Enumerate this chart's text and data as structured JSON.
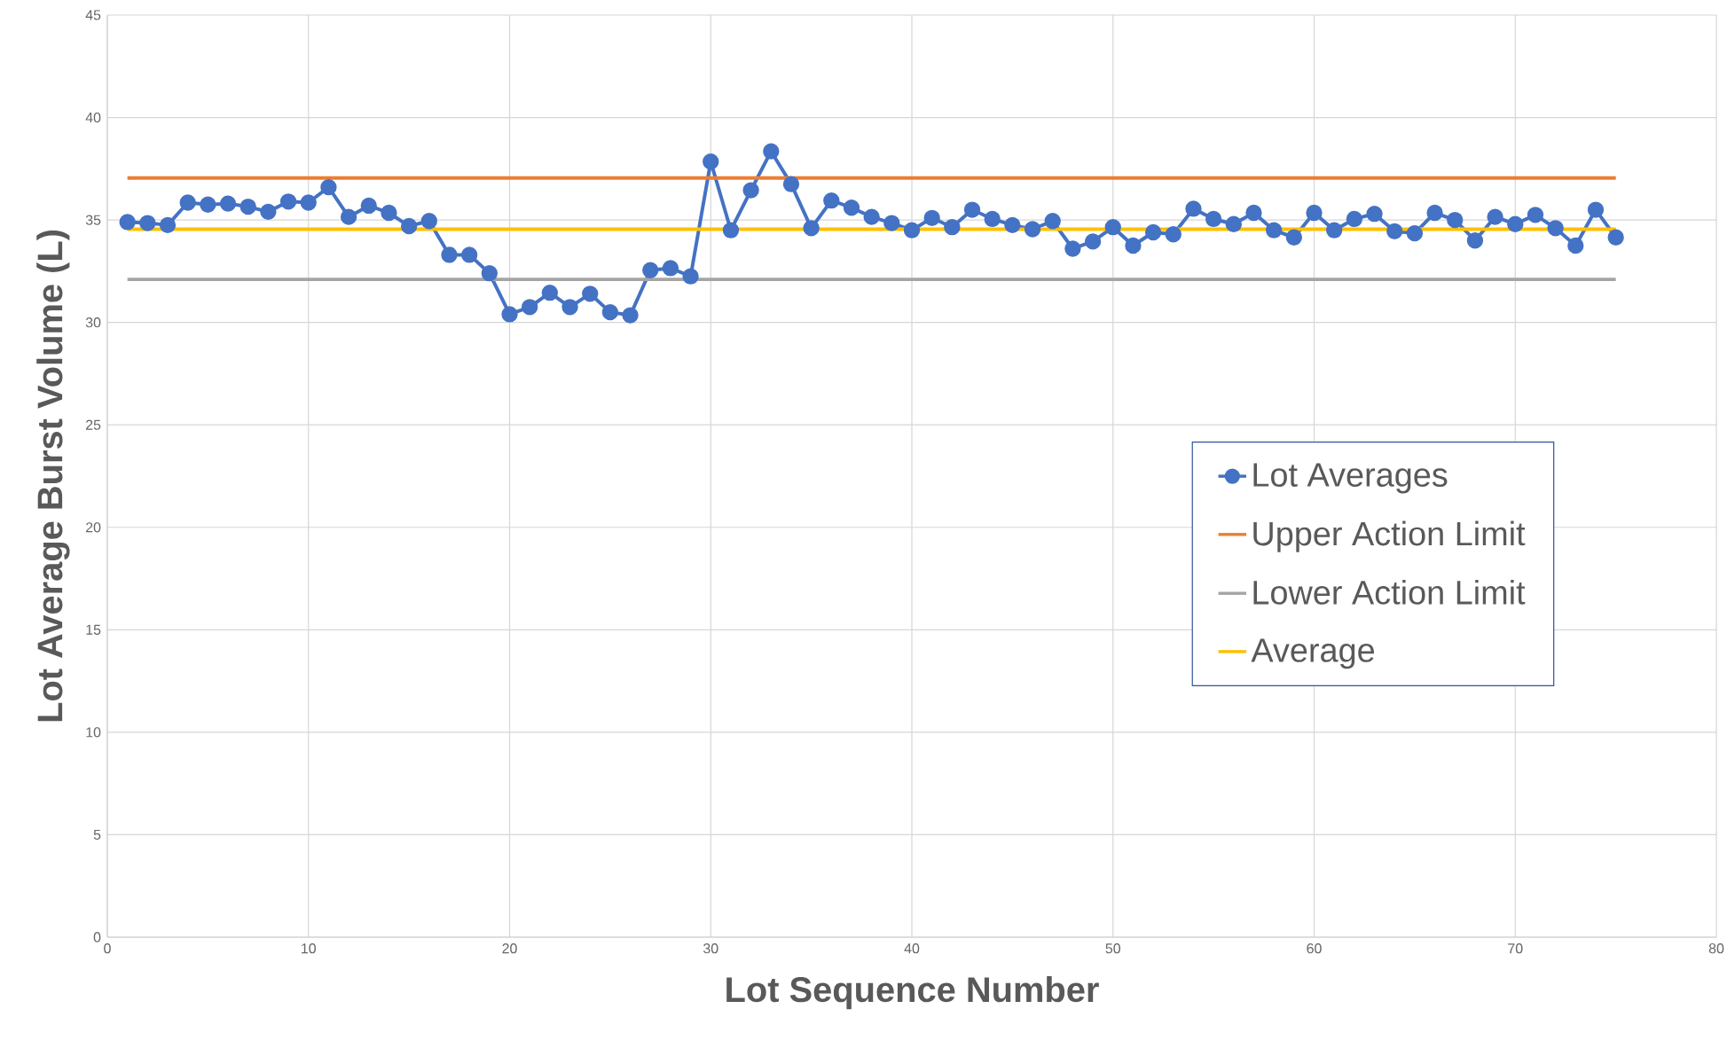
{
  "chart_data": {
    "type": "line",
    "xlabel": "Lot Sequence Number",
    "ylabel": "Lot Average Burst Volume (L)",
    "xlim": [
      0,
      80
    ],
    "xticks": [
      0,
      10,
      20,
      30,
      40,
      50,
      60,
      70,
      80
    ],
    "ylim": [
      0,
      45
    ],
    "yticks": [
      0,
      5,
      10,
      15,
      20,
      25,
      30,
      35,
      40,
      45
    ],
    "grid": true,
    "legend": "right",
    "series": [
      {
        "name": "Lot Averages",
        "color": "#4472c4",
        "marker": "circle",
        "x": [
          1,
          2,
          3,
          4,
          5,
          6,
          7,
          8,
          9,
          10,
          11,
          12,
          13,
          14,
          15,
          16,
          17,
          18,
          19,
          20,
          21,
          22,
          23,
          24,
          25,
          26,
          27,
          28,
          29,
          30,
          31,
          32,
          33,
          34,
          35,
          36,
          37,
          38,
          39,
          40,
          41,
          42,
          43,
          44,
          45,
          46,
          47,
          48,
          49,
          50,
          51,
          52,
          53,
          54,
          55,
          56,
          57,
          58,
          59,
          60,
          61,
          62,
          63,
          64,
          65,
          66,
          67,
          68,
          69,
          70,
          71,
          72,
          73,
          74,
          75
        ],
        "values": [
          34.9,
          34.85,
          34.75,
          35.85,
          35.75,
          35.8,
          35.65,
          35.4,
          35.9,
          35.85,
          36.6,
          35.15,
          35.7,
          35.35,
          34.7,
          34.95,
          33.3,
          33.3,
          32.4,
          30.4,
          30.75,
          31.45,
          30.75,
          31.4,
          30.5,
          30.35,
          32.55,
          32.65,
          32.25,
          37.85,
          34.5,
          36.45,
          38.35,
          36.75,
          34.6,
          35.95,
          35.6,
          35.15,
          34.85,
          34.5,
          35.1,
          34.65,
          35.5,
          35.05,
          34.75,
          34.55,
          34.95,
          33.6,
          33.95,
          34.65,
          33.75,
          34.4,
          34.3,
          35.55,
          35.05,
          34.8,
          35.35,
          34.5,
          34.15,
          35.35,
          34.5,
          35.05,
          35.3,
          34.45,
          34.35,
          35.35,
          35.0,
          34.0,
          35.15,
          34.8,
          35.25,
          34.6,
          33.75,
          35.5,
          34.15
        ]
      },
      {
        "name": "Upper Action Limit",
        "color": "#ed7d31",
        "marker": "none",
        "x": [
          1,
          75
        ],
        "values": [
          37.05,
          37.05
        ]
      },
      {
        "name": "Lower Action Limit",
        "color": "#a5a5a5",
        "marker": "none",
        "x": [
          1,
          75
        ],
        "values": [
          32.1,
          32.1
        ]
      },
      {
        "name": "Average",
        "color": "#ffc000",
        "marker": "none",
        "x": [
          1,
          75
        ],
        "values": [
          34.55,
          34.55
        ]
      }
    ]
  }
}
